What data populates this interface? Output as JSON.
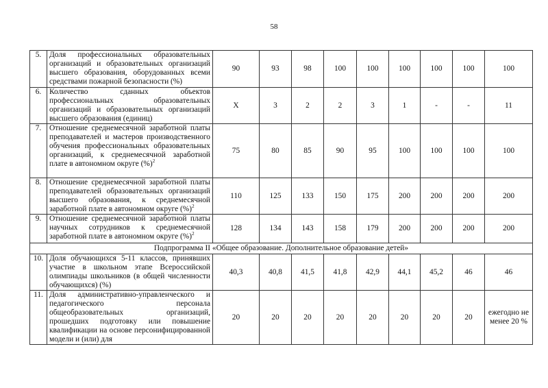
{
  "page_number": "58",
  "rows": [
    {
      "num": "5.",
      "text": "Доля профессиональных образовательных организаций и образовательных организаций высшего образования, оборудованных всеми средствами пожарной безопасности (%)",
      "sup": "",
      "values": [
        "90",
        "93",
        "98",
        "100",
        "100",
        "100",
        "100",
        "100",
        "100"
      ]
    },
    {
      "num": "6.",
      "text": "Количество сданных объектов профессиональных образовательных организаций и образовательных организаций высшего образования (единиц)",
      "sup": "",
      "values": [
        "X",
        "3",
        "2",
        "2",
        "3",
        "1",
        "-",
        "-",
        "11"
      ]
    },
    {
      "num": "7.",
      "text": "Отношение среднемесячной заработной платы преподавателей и мастеров производственного обучения профессиональных образовательных организаций, к среднемесячной заработной плате в автономном округе (%)",
      "sup": "2",
      "values": [
        "75",
        "80",
        "85",
        "90",
        "95",
        "100",
        "100",
        "100",
        "100"
      ]
    },
    {
      "num": "8.",
      "text": "Отношение среднемесячной заработной платы преподавателей образовательных организаций высшего образования, к среднемесячной заработной плате в автономном округе (%)",
      "sup": "2",
      "values": [
        "110",
        "125",
        "133",
        "150",
        "175",
        "200",
        "200",
        "200",
        "200"
      ]
    },
    {
      "num": "9.",
      "text": "Отношение среднемесячной заработной платы научных сотрудников к среднемесячной заработной плате в автономном округе (%)",
      "sup": "2",
      "values": [
        "128",
        "134",
        "143",
        "158",
        "179",
        "200",
        "200",
        "200",
        "200"
      ]
    }
  ],
  "subprogram": "Подпрограмма II «Общее образование. Дополнительное образование детей»",
  "rows2": [
    {
      "num": "10.",
      "text": "Доля обучающихся 5-11 классов, принявших участие в школьном этапе Всероссийской олимпиады школьников (в общей численности обучающихся) (%)",
      "sup": "",
      "values": [
        "40,3",
        "40,8",
        "41,5",
        "41,8",
        "42,9",
        "44,1",
        "45,2",
        "46",
        "46"
      ]
    },
    {
      "num": "11.",
      "text": "Доля административно-управленческого и педагогического персонала общеобразовательных организаций, прошедших подготовку или повышение квалификации на основе персонифицированной модели и (или) для",
      "sup": "",
      "values": [
        "20",
        "20",
        "20",
        "20",
        "20",
        "20",
        "20",
        "20",
        "ежегодно не менее 20 %"
      ]
    }
  ]
}
